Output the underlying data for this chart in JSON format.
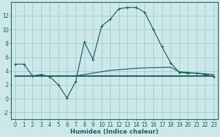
{
  "xlabel": "Humidex (Indice chaleur)",
  "ylabel": "",
  "background_color": "#cce8e8",
  "grid_color": "#99cccc",
  "line_color": "#1a6060",
  "x_values": [
    0,
    1,
    2,
    3,
    4,
    5,
    6,
    7,
    8,
    9,
    10,
    11,
    12,
    13,
    14,
    15,
    16,
    17,
    18,
    19,
    20,
    21,
    22,
    23
  ],
  "series1": [
    5.0,
    5.0,
    3.3,
    3.5,
    3.2,
    2.0,
    0.1,
    2.5,
    8.2,
    5.7,
    10.5,
    11.5,
    13.0,
    13.2,
    13.2,
    12.5,
    10.0,
    7.5,
    5.2,
    3.8,
    3.7,
    3.7,
    3.5,
    3.2
  ],
  "series2": [
    3.3,
    3.3,
    3.3,
    3.3,
    3.3,
    3.3,
    3.3,
    3.3,
    3.3,
    3.3,
    3.3,
    3.3,
    3.3,
    3.3,
    3.3,
    3.3,
    3.3,
    3.3,
    3.3,
    3.3,
    3.3,
    3.3,
    3.3,
    3.3
  ],
  "series3": [
    3.3,
    3.3,
    3.3,
    3.3,
    3.3,
    3.3,
    3.3,
    3.3,
    3.5,
    3.7,
    3.9,
    4.1,
    4.2,
    4.3,
    4.4,
    4.45,
    4.5,
    4.52,
    4.55,
    3.9,
    3.8,
    3.7,
    3.6,
    3.5
  ],
  "ylim": [
    -3.0,
    14.0
  ],
  "xlim": [
    -0.5,
    23.5
  ],
  "yticks": [
    -2,
    0,
    2,
    4,
    6,
    8,
    10,
    12
  ],
  "xtick_labels": [
    "0",
    "1",
    "2",
    "3",
    "4",
    "5",
    "6",
    "7",
    "8",
    "9",
    "10",
    "11",
    "12",
    "13",
    "14",
    "15",
    "16",
    "17",
    "18",
    "19",
    "20",
    "21",
    "22",
    "23"
  ]
}
